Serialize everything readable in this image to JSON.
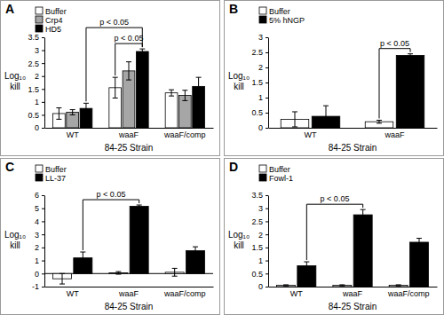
{
  "chart_data": [
    {
      "type": "bar",
      "title": "A",
      "x_label": "84-25 Strain",
      "y_label": "Log₁₀ kill",
      "categories": [
        "WT",
        "waaF",
        "waaF/comp"
      ],
      "series": [
        {
          "name": "Buffer",
          "color": "#ffffff",
          "values": [
            0.55,
            1.55,
            1.35
          ],
          "errors": [
            0.22,
            0.4,
            0.12
          ]
        },
        {
          "name": "Crp4",
          "color": "#a6a6a6",
          "values": [
            0.6,
            2.2,
            1.25
          ],
          "errors": [
            0.1,
            0.35,
            0.2
          ]
        },
        {
          "name": "HD5",
          "color": "#000000",
          "values": [
            0.75,
            2.95,
            1.6
          ],
          "errors": [
            0.2,
            0.1,
            0.35
          ]
        }
      ],
      "ylim": [
        0,
        3.5
      ],
      "yticks": [
        0,
        0.5,
        1,
        1.5,
        2,
        2.5,
        3,
        3.5
      ],
      "legend": "upper left",
      "annotations": [
        {
          "text": "p < 0.05",
          "from": {
            "category": "waaF",
            "series": "Buffer"
          },
          "to": {
            "category": "waaF",
            "series": "HD5"
          }
        },
        {
          "text": "p < 0.05",
          "from": {
            "category": "WT",
            "series": "HD5"
          },
          "to": {
            "category": "waaF",
            "series": "HD5"
          }
        }
      ]
    },
    {
      "type": "bar",
      "title": "B",
      "x_label": "84-25 Strain",
      "y_label": "Log₁₀ kill",
      "categories": [
        "WT",
        "waaF"
      ],
      "series": [
        {
          "name": "Buffer",
          "color": "#ffffff",
          "values": [
            0.28,
            0.2
          ],
          "errors": [
            0.25,
            0.05
          ]
        },
        {
          "name": "5% hNGP",
          "color": "#000000",
          "values": [
            0.38,
            2.4
          ],
          "errors": [
            0.35,
            0.05
          ]
        }
      ],
      "ylim": [
        0,
        3
      ],
      "yticks": [
        0,
        0.5,
        1,
        1.5,
        2,
        2.5,
        3
      ],
      "legend": "upper left",
      "annotations": [
        {
          "text": "p < 0.05",
          "from": {
            "category": "waaF",
            "series": "Buffer"
          },
          "to": {
            "category": "waaF",
            "series": "5% hNGP"
          }
        }
      ]
    },
    {
      "type": "bar",
      "title": "C",
      "x_label": "84-25 Strain",
      "y_label": "Log₁₀ kill",
      "categories": [
        "WT",
        "waaF",
        "waaF/comp"
      ],
      "series": [
        {
          "name": "Buffer",
          "color": "#ffffff",
          "values": [
            -0.4,
            0.05,
            0.1
          ],
          "errors": [
            0.4,
            0.1,
            0.3
          ]
        },
        {
          "name": "LL-37",
          "color": "#000000",
          "values": [
            1.2,
            5.15,
            1.75
          ],
          "errors": [
            0.45,
            0.1,
            0.3
          ]
        }
      ],
      "ylim": [
        -1,
        6
      ],
      "yticks": [
        -1,
        0,
        1,
        2,
        3,
        4,
        5,
        6
      ],
      "legend": "upper left",
      "annotations": [
        {
          "text": "p < 0.05",
          "from": {
            "category": "WT",
            "series": "LL-37"
          },
          "to": {
            "category": "waaF",
            "series": "LL-37"
          }
        }
      ]
    },
    {
      "type": "bar",
      "title": "D",
      "x_label": "84-25 Strain",
      "y_label": "Log₁₀ kill",
      "categories": [
        "WT",
        "waaF",
        "waaF/comp"
      ],
      "series": [
        {
          "name": "Buffer",
          "color": "#ffffff",
          "values": [
            0.05,
            0.05,
            0.05
          ],
          "errors": [
            0.02,
            0.02,
            0.02
          ]
        },
        {
          "name": "Fowl-1",
          "color": "#000000",
          "values": [
            0.8,
            2.75,
            1.7
          ],
          "errors": [
            0.15,
            0.2,
            0.15
          ]
        }
      ],
      "ylim": [
        0,
        3.5
      ],
      "yticks": [
        0,
        0.5,
        1,
        1.5,
        2,
        2.5,
        3,
        3.5
      ],
      "legend": "upper left",
      "annotations": [
        {
          "text": "p < 0.05",
          "from": {
            "category": "WT",
            "series": "Fowl-1"
          },
          "to": {
            "category": "waaF",
            "series": "Fowl-1"
          }
        }
      ]
    }
  ]
}
